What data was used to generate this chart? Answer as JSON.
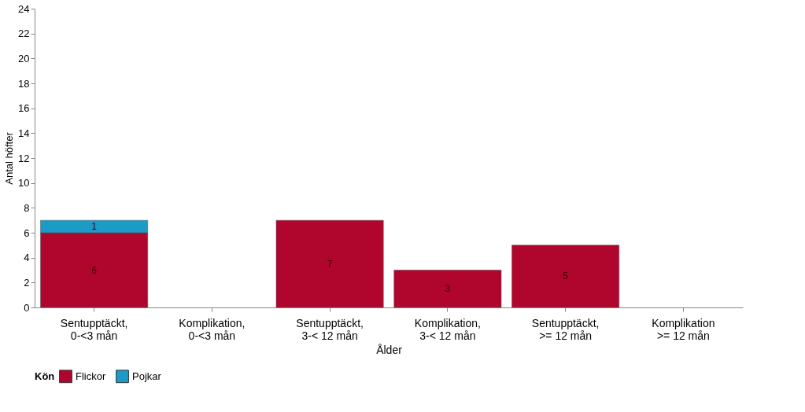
{
  "chart_data": {
    "type": "bar",
    "stacked": true,
    "xlabel": "Ålder",
    "ylabel": "Antal höfter",
    "legend_title": "Kön",
    "categories": [
      "Sentupptäckt,\n0-<3 mån",
      "Komplikation,\n0-<3 mån",
      "Sentupptäckt,\n3-< 12 mån",
      "Komplikation,\n3-< 12 mån",
      "Sentupptäckt,\n>= 12 mån",
      "Komplikation\n>= 12 mån"
    ],
    "series": [
      {
        "name": "Flickor",
        "color": "#b0062e",
        "values": [
          6,
          null,
          7,
          3,
          5,
          null
        ]
      },
      {
        "name": "Pojkar",
        "color": "#1b9bc6",
        "values": [
          1,
          null,
          null,
          null,
          null,
          null
        ]
      }
    ],
    "ylim": [
      0,
      24
    ],
    "yticks": [
      0,
      2,
      4,
      6,
      8,
      10,
      12,
      14,
      16,
      18,
      20,
      22,
      24
    ],
    "grid": false,
    "legend": "bottom",
    "data_labels": true
  }
}
